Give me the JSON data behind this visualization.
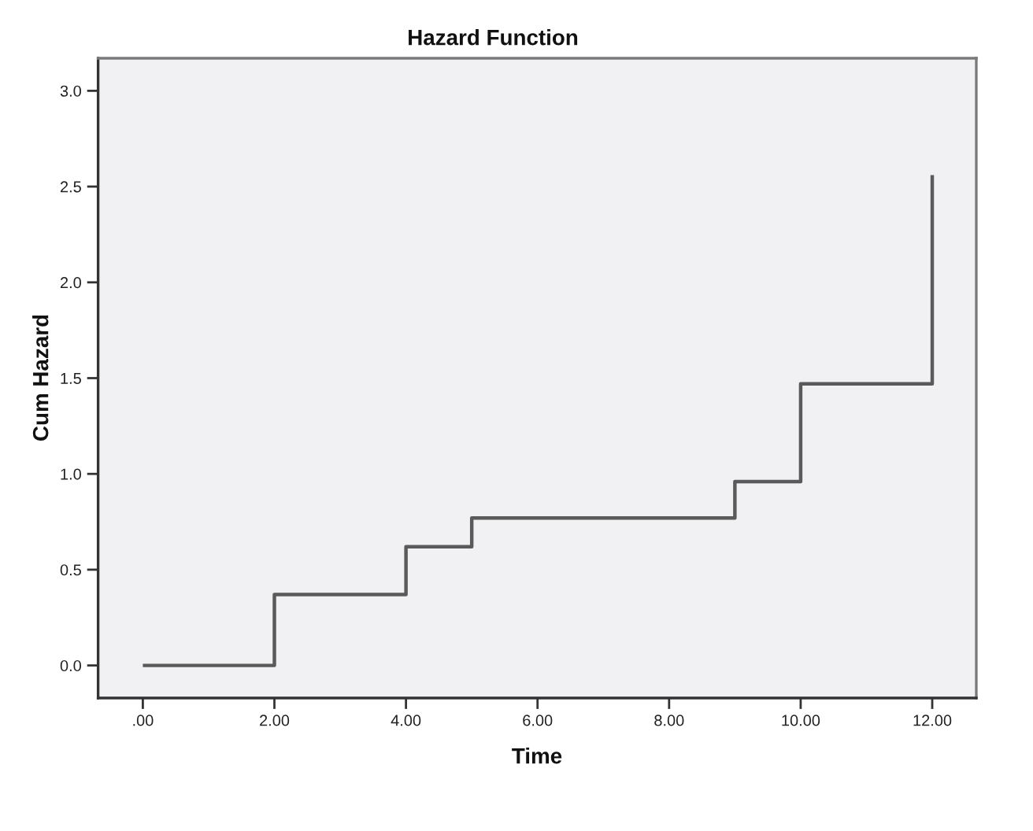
{
  "chart_data": {
    "type": "step",
    "title": "Hazard Function",
    "xlabel": "Time",
    "ylabel": "Cum Hazard",
    "x": [
      0,
      2,
      4,
      5,
      9,
      10,
      12
    ],
    "values": [
      0,
      0.37,
      0.62,
      0.77,
      0.96,
      1.47,
      2.56
    ],
    "color": "#5a5a5a",
    "line_style": "solid",
    "xlim": [
      -0.68,
      12.67
    ],
    "ylim": [
      -0.17,
      3.17
    ],
    "xticks": [
      {
        "value": 0,
        "label": ".00"
      },
      {
        "value": 2,
        "label": "2.00"
      },
      {
        "value": 4,
        "label": "4.00"
      },
      {
        "value": 6,
        "label": "6.00"
      },
      {
        "value": 8,
        "label": "8.00"
      },
      {
        "value": 10,
        "label": "10.00"
      },
      {
        "value": 12,
        "label": "12.00"
      }
    ],
    "yticks": [
      {
        "value": 0,
        "label": "0.0"
      },
      {
        "value": 0.5,
        "label": "0.5"
      },
      {
        "value": 1,
        "label": "1.0"
      },
      {
        "value": 1.5,
        "label": "1.5"
      },
      {
        "value": 2,
        "label": "2.0"
      },
      {
        "value": 2.5,
        "label": "2.5"
      },
      {
        "value": 3,
        "label": "3.0"
      }
    ],
    "grid": false
  }
}
